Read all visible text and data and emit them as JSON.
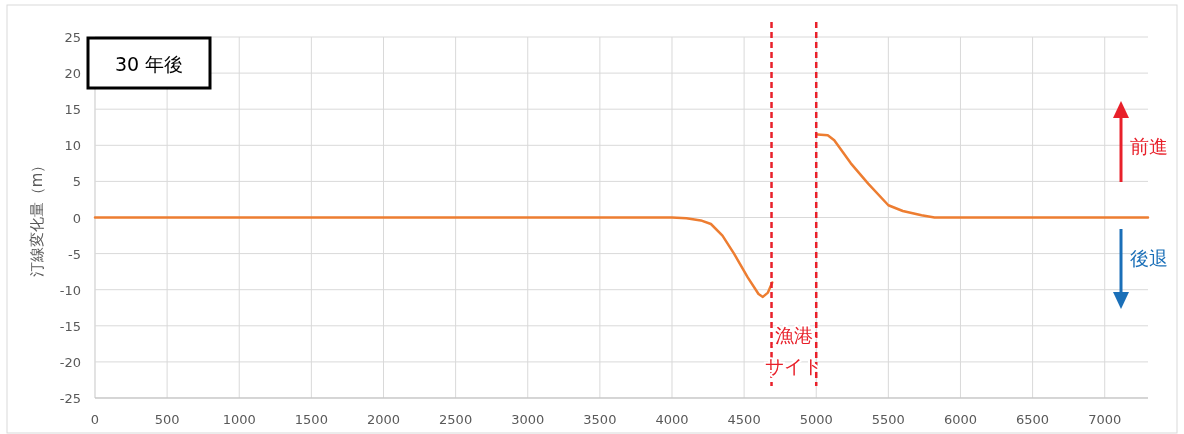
{
  "chart_data": {
    "type": "line",
    "ylabel": "汀線変化量（m）",
    "annotations": [
      "30 年後",
      "前進",
      "後退",
      "漁港",
      "サイト"
    ],
    "x": [
      0,
      4000,
      4100,
      4200,
      4270,
      4350,
      4430,
      4525,
      4600,
      4630,
      4665,
      4695,
      5010,
      5080,
      5125,
      5240,
      5360,
      5500,
      5600,
      5730,
      5820,
      7300
    ],
    "series": [
      {
        "color": "#ed7d31",
        "values": [
          0,
          0,
          -0.1,
          -0.4,
          -0.9,
          -2.5,
          -5.0,
          -8.3,
          -10.6,
          -11.0,
          -10.4,
          -9.0,
          null,
          null,
          null,
          null,
          null,
          null,
          null,
          null,
          null,
          null
        ]
      },
      {
        "color": "#ed7d31",
        "values": [
          null,
          null,
          null,
          null,
          null,
          null,
          null,
          null,
          null,
          null,
          null,
          null,
          11.5,
          11.4,
          10.7,
          7.5,
          4.7,
          1.7,
          0.9,
          0.3,
          0,
          0
        ]
      }
    ],
    "ref_lines": [
      {
        "axis": "x",
        "value": 4690,
        "color": "#e8202a",
        "line_style": "dashed"
      },
      {
        "axis": "x",
        "value": 5000,
        "color": "#e8202a",
        "line_style": "dashed"
      }
    ],
    "xlim": [
      0,
      7300
    ],
    "xticks": [
      0,
      500,
      1000,
      1500,
      2000,
      2500,
      3000,
      3500,
      4000,
      4500,
      5000,
      5500,
      6000,
      6500,
      7000
    ],
    "ylim": [
      -25,
      25
    ],
    "yticks": [
      -25,
      -20,
      -15,
      -10,
      -5,
      0,
      5,
      10,
      15,
      20,
      25
    ],
    "grid": true,
    "marker": "none",
    "line_style": "solid"
  }
}
